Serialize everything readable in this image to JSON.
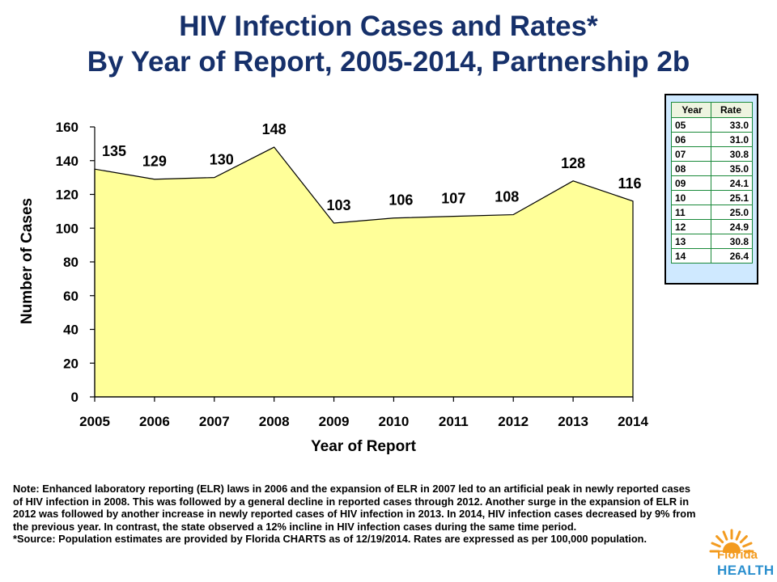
{
  "title_line1": "HIV Infection Cases and Rates*",
  "title_line2": "By Year of Report, 2005-2014, Partnership 2b",
  "chart_data": {
    "type": "area",
    "x": [
      "2005",
      "2006",
      "2007",
      "2008",
      "2009",
      "2010",
      "2011",
      "2012",
      "2013",
      "2014"
    ],
    "values": [
      135,
      129,
      130,
      148,
      103,
      106,
      107,
      108,
      128,
      116
    ],
    "data_labels": [
      "135",
      "129",
      "130",
      "148",
      "103",
      "106",
      "107",
      "108",
      "128",
      "116"
    ],
    "xlabel": "Year of Report",
    "ylabel": "Number of Cases",
    "ylim": [
      0,
      160
    ],
    "yticks": [
      0,
      20,
      40,
      60,
      80,
      100,
      120,
      140,
      160
    ],
    "grid": false,
    "fill_color": "#ffff99",
    "line_color": "#000000"
  },
  "rate_table": {
    "headers": [
      "Year",
      "Rate"
    ],
    "rows": [
      [
        "05",
        "33.0"
      ],
      [
        "06",
        "31.0"
      ],
      [
        "07",
        "30.8"
      ],
      [
        "08",
        "35.0"
      ],
      [
        "09",
        "24.1"
      ],
      [
        "10",
        "25.1"
      ],
      [
        "11",
        "25.0"
      ],
      [
        "12",
        "24.9"
      ],
      [
        "13",
        "30.8"
      ],
      [
        "14",
        "26.4"
      ]
    ],
    "border_color": "#1a8a3a",
    "background": "#cfe9ff"
  },
  "note": {
    "paragraph1": "Note: Enhanced laboratory reporting (ELR) laws in 2006 and the expansion of ELR in 2007 led to an artificial peak in newly reported cases of HIV infection in 2008. This was followed by a general decline in reported cases through 2012. Another surge in the expansion of ELR in 2012 was followed by another increase in newly reported cases of HIV infection in 2013. In 2014, HIV infection cases decreased by 9% from the previous year. In contrast, the state observed a 12% incline in HIV infection cases during the same time period.",
    "paragraph2": "*Source: Population estimates are provided by Florida CHARTS as of 12/19/2014. Rates are expressed as per 100,000 population."
  },
  "logo": {
    "line1": "Florida",
    "line2": "HEALTH",
    "icon": "sun-logo-icon",
    "colors": {
      "sun": "#f39b1f",
      "health": "#2a8fce"
    }
  },
  "colors": {
    "title": "#16306a"
  }
}
